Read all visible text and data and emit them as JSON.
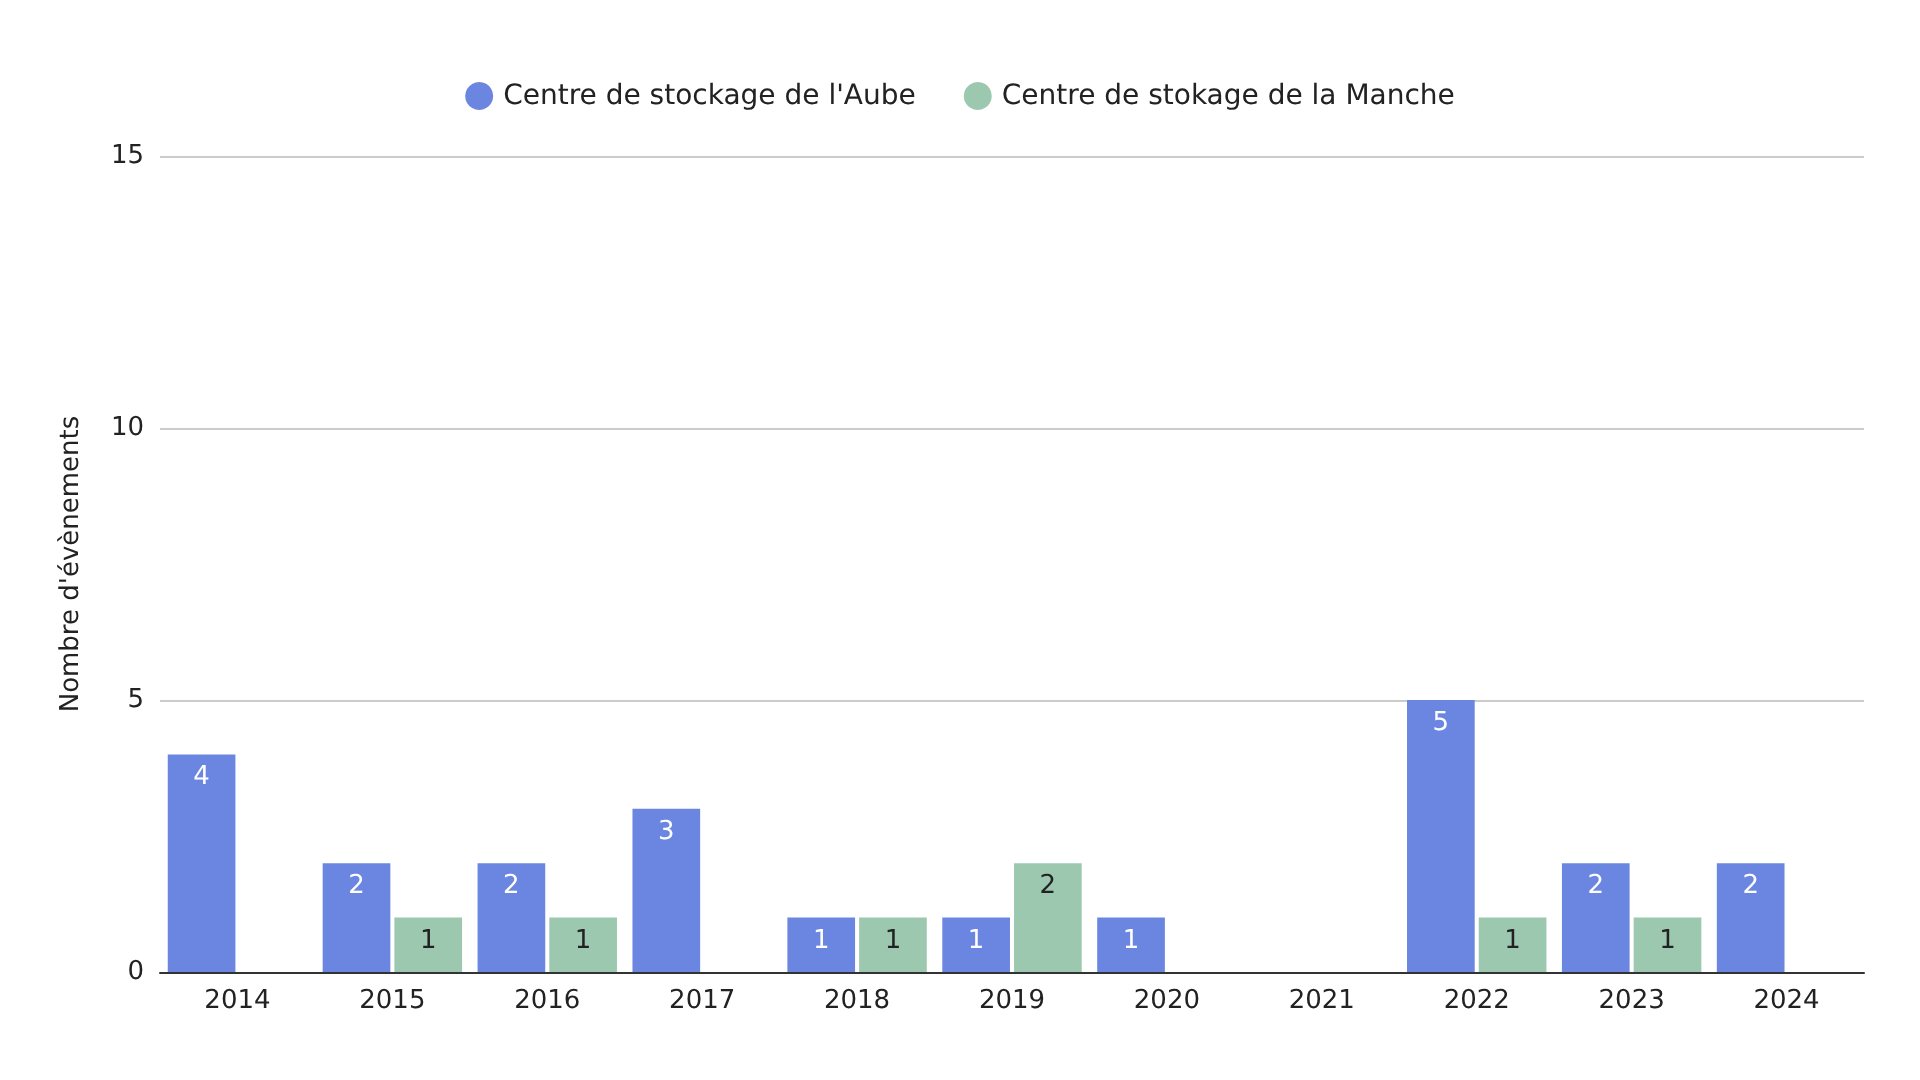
{
  "chart_data": {
    "type": "bar",
    "categories": [
      "2014",
      "2015",
      "2016",
      "2017",
      "2018",
      "2019",
      "2020",
      "2021",
      "2022",
      "2023",
      "2024"
    ],
    "series": [
      {
        "name": "Centre de stockage de l'Aube",
        "color": "#6b86e0",
        "values": [
          4,
          2,
          2,
          3,
          1,
          1,
          1,
          null,
          5,
          2,
          2
        ]
      },
      {
        "name": "Centre de stokage de la Manche",
        "color": "#9dc8b0",
        "values": [
          null,
          1,
          1,
          null,
          1,
          2,
          null,
          null,
          1,
          1,
          null
        ]
      }
    ],
    "ylabel": "Nombre d'évènements",
    "ylim": [
      0,
      15
    ],
    "yticks": [
      0,
      5,
      10,
      15
    ],
    "grid": "y",
    "legend": "top",
    "data_labels": true
  }
}
